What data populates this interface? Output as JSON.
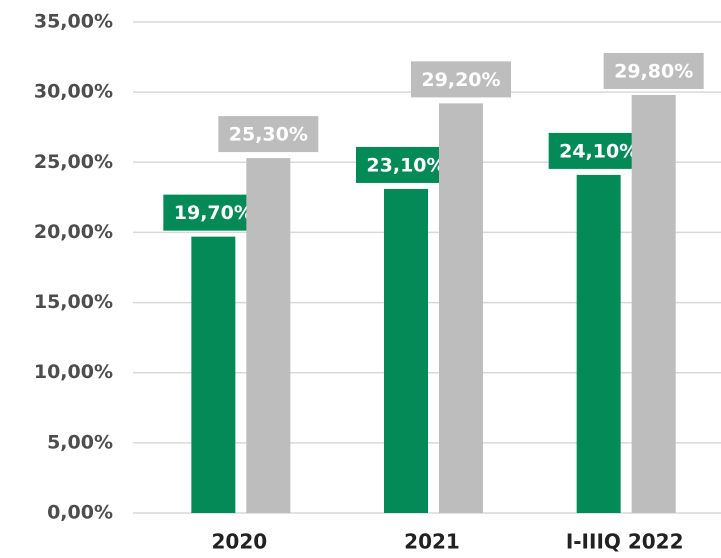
{
  "chart_data": {
    "type": "bar",
    "categories": [
      "2020",
      "2021",
      "I-IIIQ 2022"
    ],
    "series": [
      {
        "color": "#038a57",
        "values": [
          19.7,
          23.1,
          24.1
        ],
        "value_labels": [
          "19,70%",
          "23,10%",
          "24,10%"
        ]
      },
      {
        "color": "#bdbdbd",
        "values": [
          25.3,
          29.2,
          29.8
        ],
        "value_labels": [
          "25,30%",
          "29,20%",
          "29,80%"
        ]
      }
    ],
    "ylim": [
      0,
      35
    ],
    "yticks": [
      {
        "value": 0,
        "label": "0,00%"
      },
      {
        "value": 5,
        "label": "5,00%"
      },
      {
        "value": 10,
        "label": "10,00%"
      },
      {
        "value": 15,
        "label": "15,00%"
      },
      {
        "value": 20,
        "label": "20,00%"
      },
      {
        "value": 25,
        "label": "25,00%"
      },
      {
        "value": 30,
        "label": "30,00%"
      },
      {
        "value": 35,
        "label": "35,00%"
      }
    ],
    "grid": true
  }
}
